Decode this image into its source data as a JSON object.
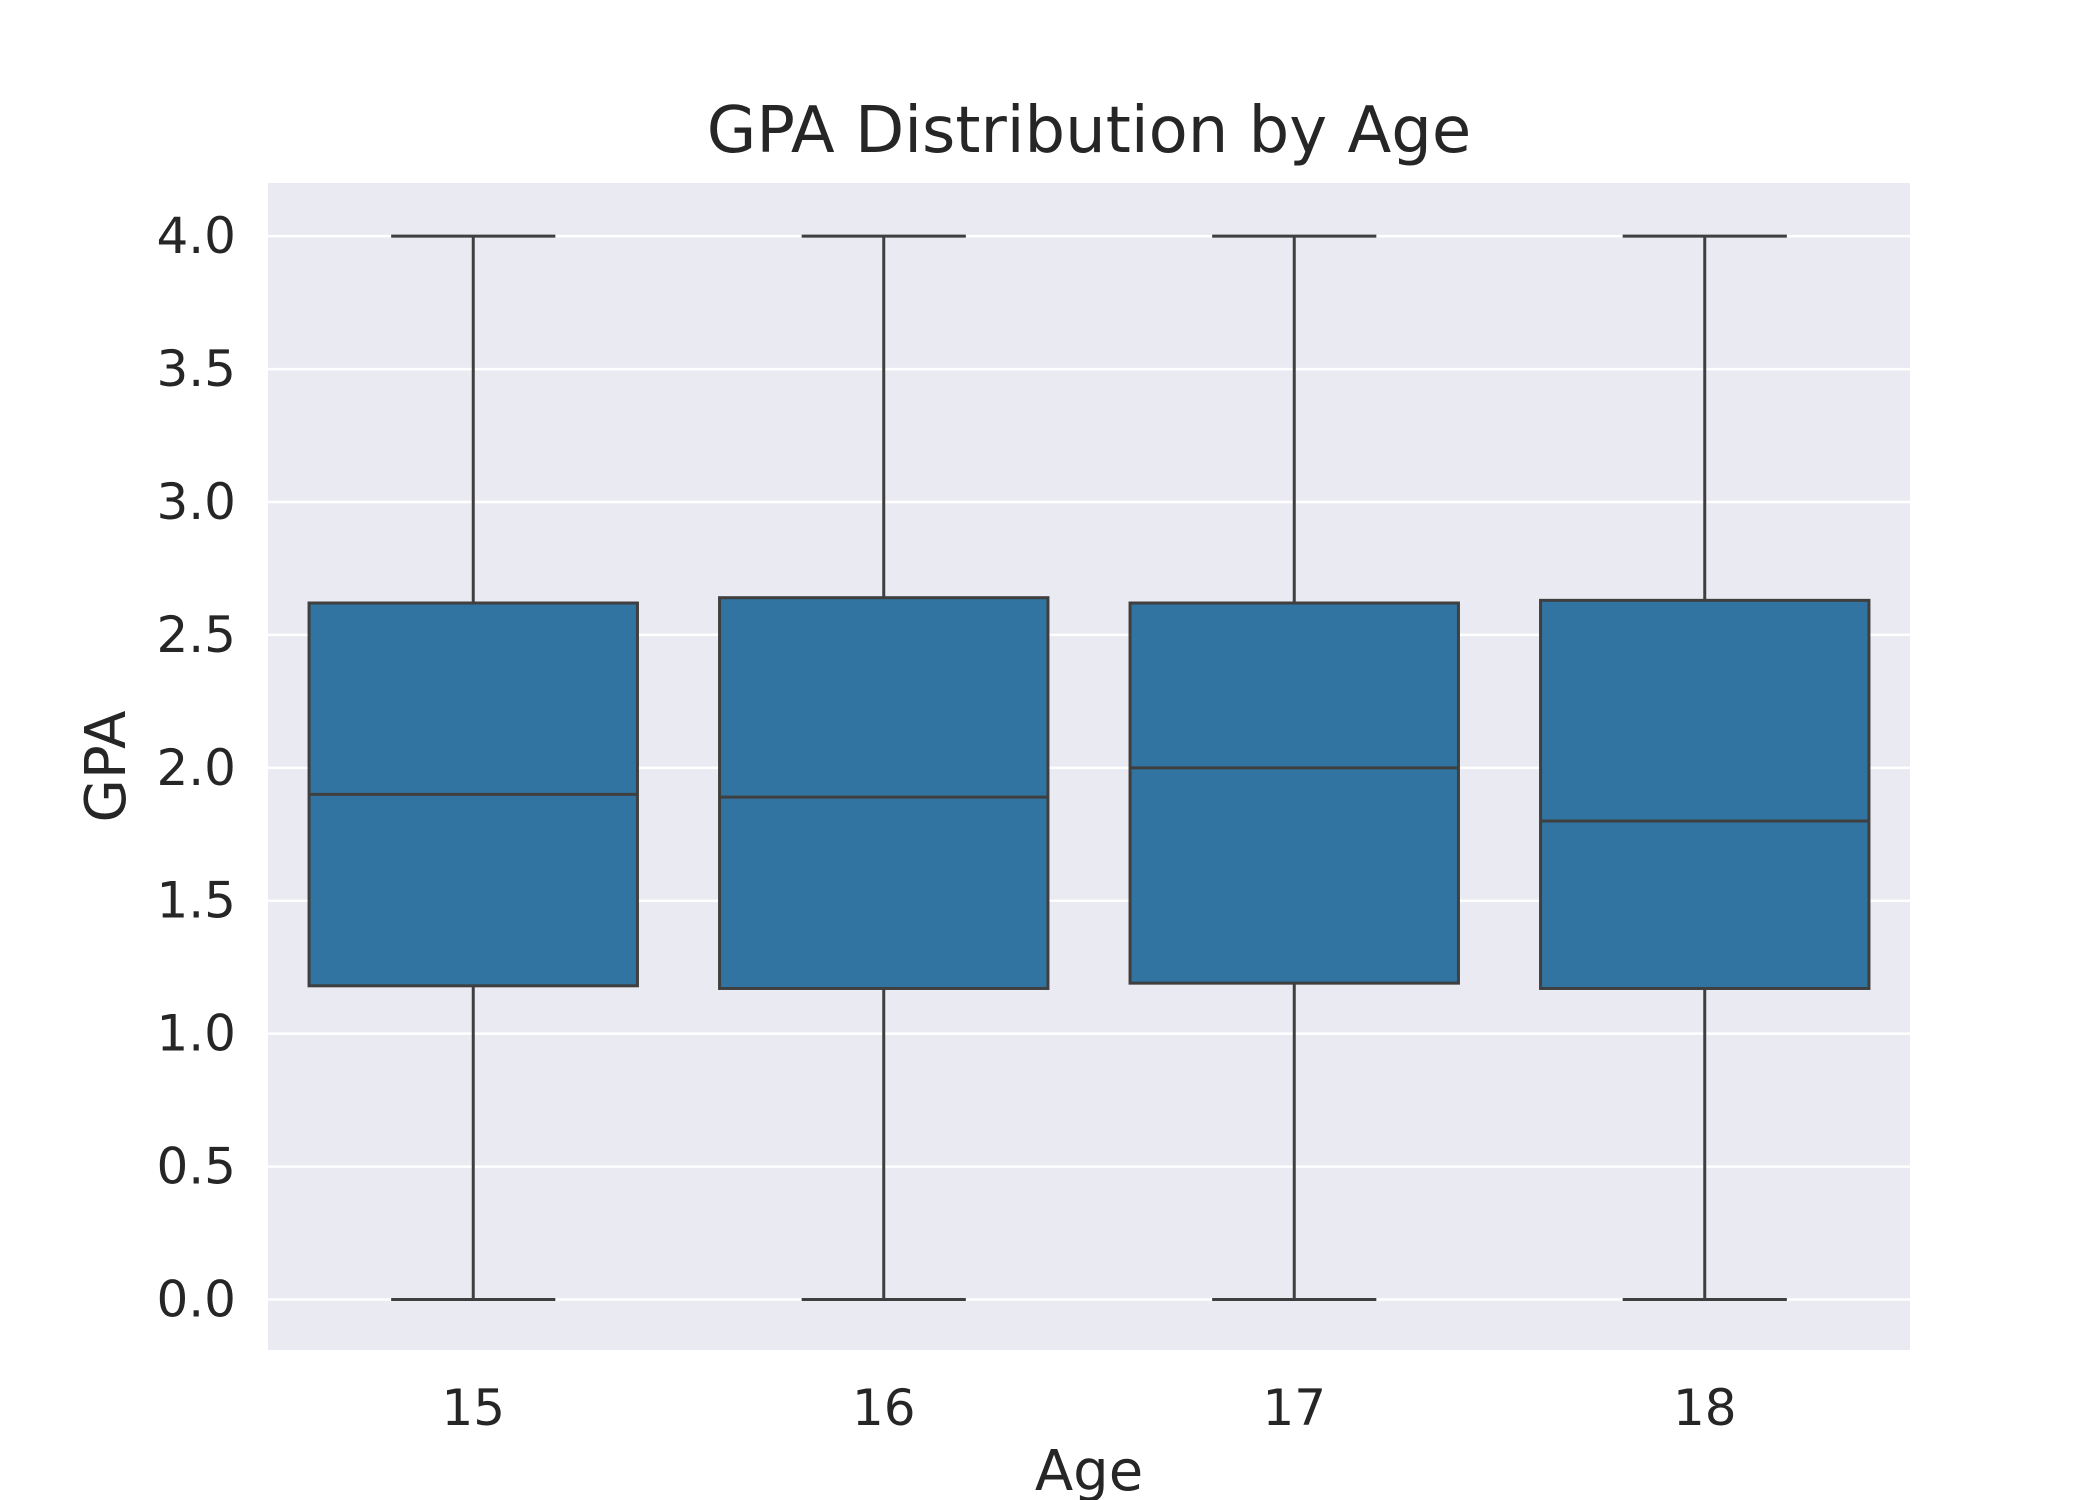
{
  "chart_data": {
    "type": "box",
    "title": "GPA Distribution by Age",
    "xlabel": "Age",
    "ylabel": "GPA",
    "categories": [
      "15",
      "16",
      "17",
      "18"
    ],
    "ylim": [
      -0.19,
      4.2
    ],
    "yticks": [
      0.0,
      0.5,
      1.0,
      1.5,
      2.0,
      2.5,
      3.0,
      3.5,
      4.0
    ],
    "ytick_labels": [
      "0.0",
      "0.5",
      "1.0",
      "1.5",
      "2.0",
      "2.5",
      "3.0",
      "3.5",
      "4.0"
    ],
    "grid": true,
    "box_color": "#3274a1",
    "line_color": "#3f3f3f",
    "background_color": "#eaeaf2",
    "grid_color": "#ffffff",
    "boxes": [
      {
        "category": "15",
        "whisker_low": 0.0,
        "q1": 1.18,
        "median": 1.9,
        "q3": 2.62,
        "whisker_high": 4.0
      },
      {
        "category": "16",
        "whisker_low": 0.0,
        "q1": 1.17,
        "median": 1.89,
        "q3": 2.64,
        "whisker_high": 4.0
      },
      {
        "category": "17",
        "whisker_low": 0.0,
        "q1": 1.19,
        "median": 2.0,
        "q3": 2.62,
        "whisker_high": 4.0
      },
      {
        "category": "18",
        "whisker_low": 0.0,
        "q1": 1.17,
        "median": 1.8,
        "q3": 2.63,
        "whisker_high": 4.0
      }
    ]
  }
}
